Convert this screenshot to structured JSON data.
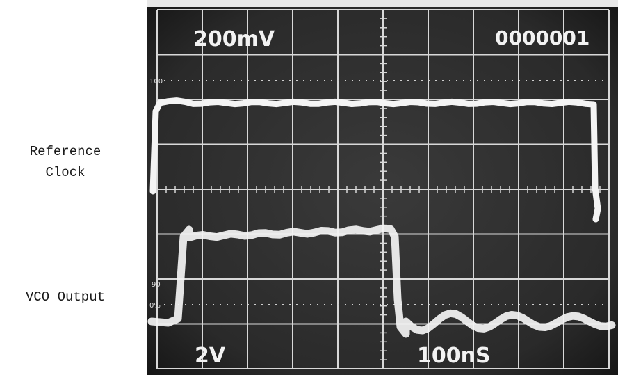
{
  "labels": {
    "reference": "Reference\nClock",
    "vco": "VCO Output"
  },
  "readouts": {
    "ch1_scale": "200mV",
    "counter": "0000001",
    "ch2_scale": "2V",
    "timebase": "100nS"
  },
  "graticule_markers": {
    "top_pct": "100",
    "bottom_90": "90",
    "bottom_pct": "0%"
  },
  "colors": {
    "screen": "#2a2a2a",
    "grid": "#d8d8d8",
    "trace": "#f4f4f4",
    "label_text": "#1a1a1a"
  }
}
